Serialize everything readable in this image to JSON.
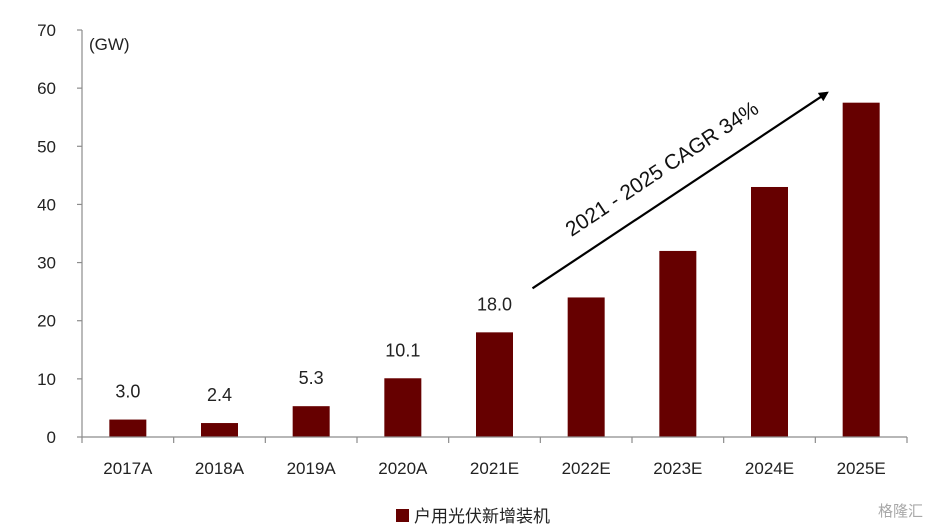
{
  "chart_data": {
    "type": "bar",
    "unit_label": "(GW)",
    "categories": [
      "2017A",
      "2018A",
      "2019A",
      "2020A",
      "2021E",
      "2022E",
      "2023E",
      "2024E",
      "2025E"
    ],
    "series": [
      {
        "name": "户用光伏新增装机",
        "values": [
          3.0,
          2.4,
          5.3,
          10.1,
          18.0,
          24.0,
          32.0,
          43.0,
          57.5
        ],
        "data_labels": [
          "3.0",
          "2.4",
          "5.3",
          "10.1",
          "18.0",
          null,
          null,
          null,
          null
        ]
      }
    ],
    "ylim": [
      0,
      70
    ],
    "yticks": [
      0,
      10,
      20,
      30,
      40,
      50,
      60,
      70
    ],
    "highlight_label_index": 4,
    "annotation": {
      "text": "2021 - 2025 CAGR 34%",
      "from_category": "2021E",
      "to_category": "2025E"
    },
    "legend_position": "bottom-center",
    "grid": false,
    "colors": {
      "bar": "#660000",
      "highlight_label": "#e8262a",
      "axis": "#8c8c8c",
      "arrow": "#000000"
    }
  },
  "watermark": "格隆汇"
}
